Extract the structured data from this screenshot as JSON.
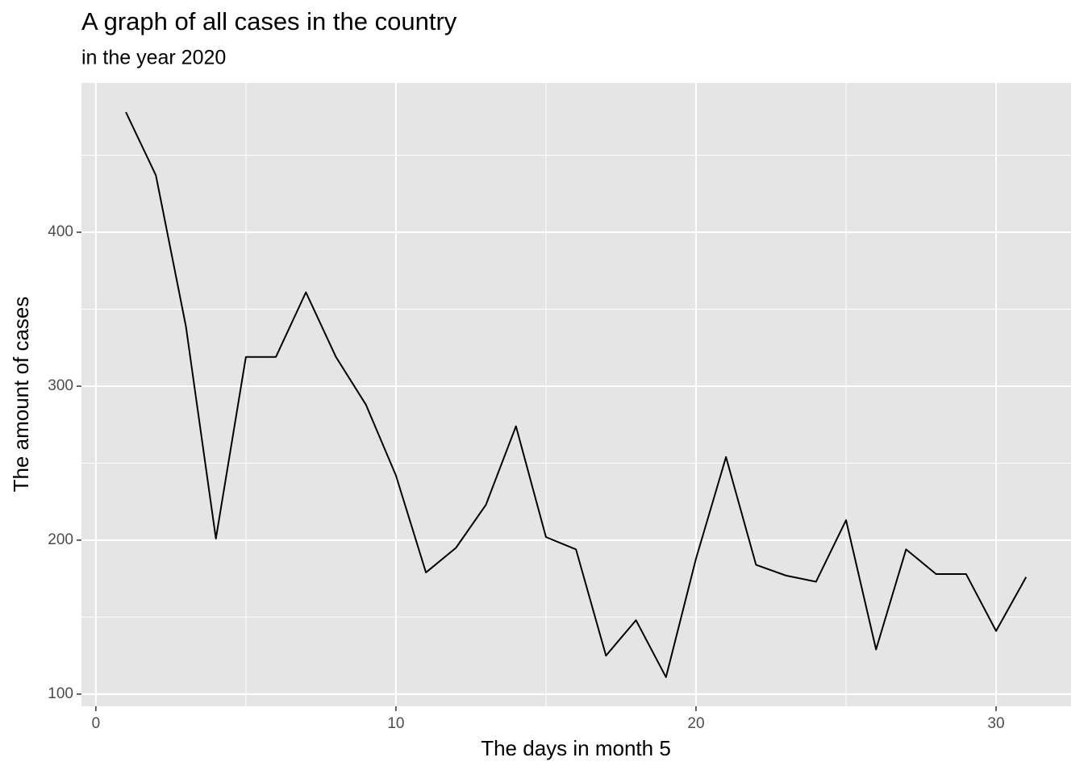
{
  "chart_data": {
    "type": "line",
    "title": "A graph of all cases in the country",
    "subtitle": "in the year 2020",
    "x_label": "The days in month 5",
    "y_label": "The amount of cases",
    "x": [
      1,
      2,
      3,
      4,
      5,
      6,
      7,
      8,
      9,
      10,
      11,
      12,
      13,
      14,
      15,
      16,
      17,
      18,
      19,
      20,
      21,
      22,
      23,
      24,
      25,
      26,
      27,
      28,
      29,
      30,
      31
    ],
    "series": [
      {
        "color": "#000000",
        "values": [
          478,
          437,
          339,
          201,
          319,
          319,
          361,
          319,
          288,
          242,
          179,
          195,
          223,
          274,
          202,
          194,
          125,
          148,
          111,
          188,
          254,
          184,
          177,
          173,
          213,
          129,
          194,
          178,
          178,
          141,
          176
        ]
      }
    ],
    "xlim": [
      -0.48,
      32.5
    ],
    "ylim": [
      92.1,
      496.9
    ],
    "xticks": [
      0,
      10,
      20,
      30
    ],
    "yticks": [
      100,
      200,
      300,
      400
    ],
    "x_minor_grid": [
      5,
      15,
      25
    ],
    "y_minor_grid": [
      150,
      250,
      350,
      450
    ],
    "grid": true
  }
}
